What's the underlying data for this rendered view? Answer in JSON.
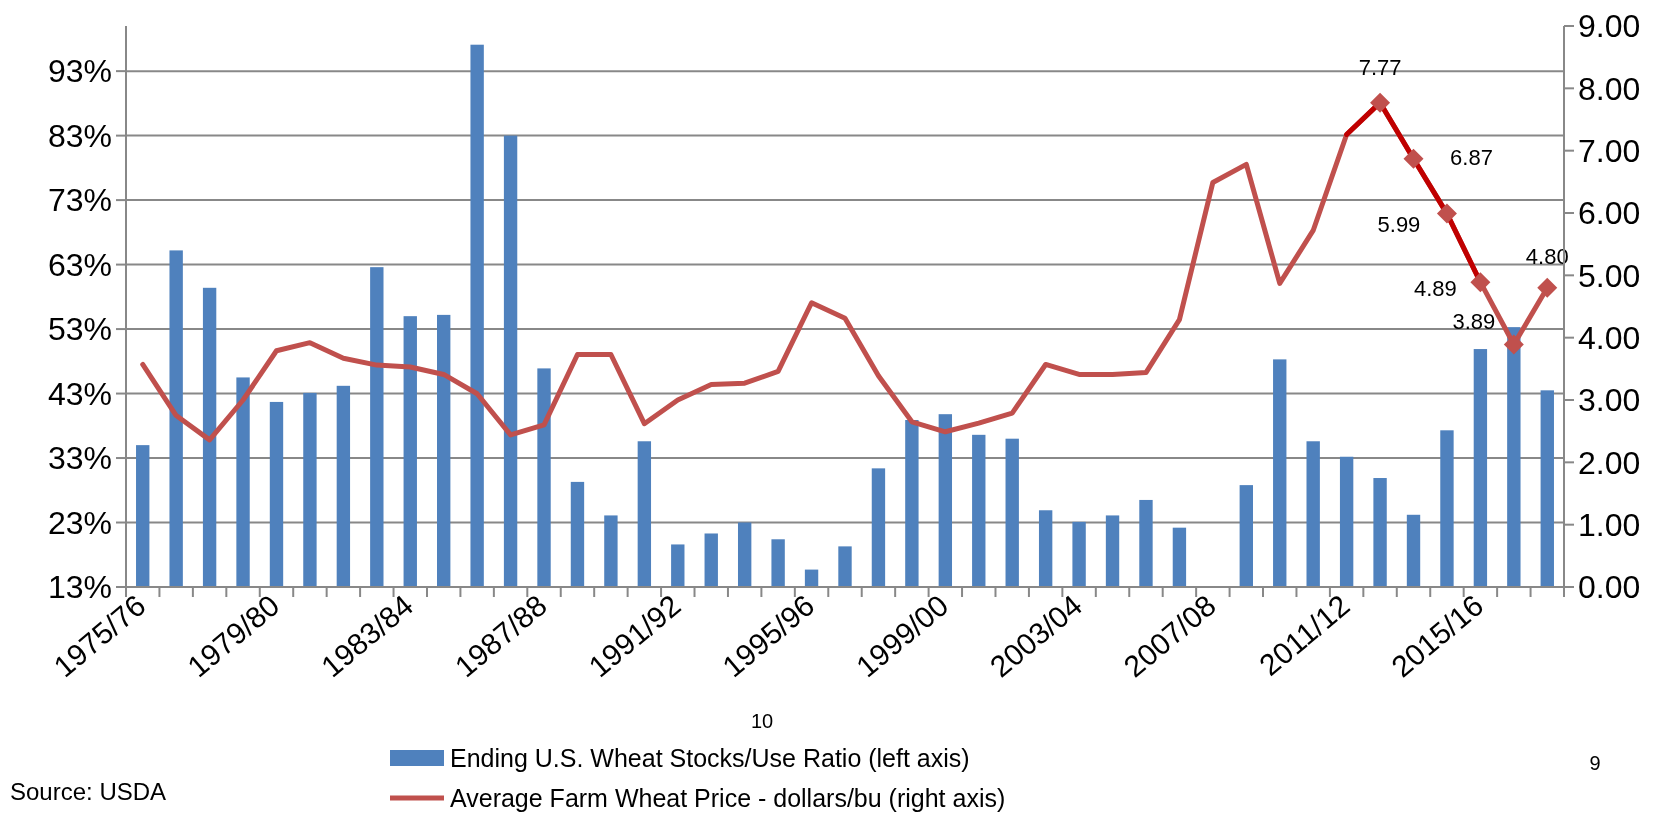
{
  "chart_data": {
    "type": "bar",
    "categories": [
      "1975/76",
      null,
      null,
      null,
      "1979/80",
      null,
      null,
      null,
      "1983/84",
      null,
      null,
      null,
      "1987/88",
      null,
      null,
      null,
      "1991/92",
      null,
      null,
      null,
      "1995/96",
      null,
      null,
      null,
      "1999/00",
      null,
      null,
      null,
      "2003/04",
      null,
      null,
      null,
      "2007/08",
      null,
      null,
      null,
      "2011/12",
      null,
      null,
      null,
      "2015/16",
      null,
      null
    ],
    "series": [
      {
        "name": "Ending U.S. Wheat Stocks/Use Ratio (left axis)",
        "color": "#4f81bd",
        "values": [
          35.0,
          65.2,
          59.4,
          45.5,
          41.7,
          43.1,
          44.2,
          62.6,
          55.0,
          55.2,
          97.1,
          83.0,
          46.9,
          29.3,
          24.1,
          35.6,
          19.6,
          21.3,
          23.0,
          20.4,
          15.7,
          19.3,
          31.4,
          38.9,
          39.8,
          36.6,
          36.0,
          24.9,
          23.1,
          24.1,
          26.5,
          22.2,
          13.1,
          28.8,
          48.3,
          35.6,
          33.2,
          29.9,
          24.2,
          37.3,
          49.9,
          53.3,
          43.5
        ]
      },
      {
        "name": "Average Farm Wheat Price - dollars/bu (right axis)",
        "type": "line",
        "axis": "y2",
        "color": "#c0504d",
        "values": [
          3.57,
          2.75,
          2.36,
          3.0,
          3.79,
          3.92,
          3.67,
          3.56,
          3.53,
          3.41,
          3.1,
          2.44,
          2.6,
          3.73,
          3.73,
          2.62,
          3.0,
          3.25,
          3.27,
          3.46,
          4.56,
          4.31,
          3.39,
          2.65,
          2.49,
          2.63,
          2.79,
          3.57,
          3.41,
          3.41,
          3.44,
          4.29,
          6.49,
          6.78,
          4.87,
          5.72,
          7.26,
          7.77,
          6.87,
          5.99,
          4.89,
          3.89,
          4.8
        ]
      },
      {
        "type": "line",
        "axis": "y2",
        "color": "#c00000",
        "values": [
          null,
          null,
          null,
          null,
          null,
          null,
          null,
          null,
          null,
          null,
          null,
          null,
          null,
          null,
          null,
          null,
          null,
          null,
          null,
          null,
          null,
          null,
          null,
          null,
          null,
          null,
          null,
          null,
          null,
          null,
          null,
          null,
          null,
          null,
          null,
          null,
          7.26,
          7.77,
          6.87,
          5.99,
          4.89,
          null,
          null
        ]
      },
      {
        "type": "scatter",
        "axis": "y2",
        "color": "#c0504d",
        "marker": "diamond",
        "values": [
          null,
          null,
          null,
          null,
          null,
          null,
          null,
          null,
          null,
          null,
          null,
          null,
          null,
          null,
          null,
          null,
          null,
          null,
          null,
          null,
          null,
          null,
          null,
          null,
          null,
          null,
          null,
          null,
          null,
          null,
          null,
          null,
          null,
          null,
          null,
          null,
          null,
          7.77,
          6.87,
          5.99,
          4.89,
          3.89,
          4.8
        ],
        "value_labels": [
          null,
          null,
          null,
          null,
          null,
          null,
          null,
          null,
          null,
          null,
          null,
          null,
          null,
          null,
          null,
          null,
          null,
          null,
          null,
          null,
          null,
          null,
          null,
          null,
          null,
          null,
          null,
          null,
          null,
          null,
          null,
          null,
          null,
          null,
          null,
          null,
          null,
          "7.77",
          "6.87",
          "5.99",
          "4.89",
          "3.89",
          "4.80"
        ]
      }
    ],
    "ylim": [
      13,
      100
    ],
    "yticks": [
      {
        "value": 13,
        "label": "13%"
      },
      {
        "value": 23,
        "label": "23%"
      },
      {
        "value": 33,
        "label": "33%"
      },
      {
        "value": 43,
        "label": "43%"
      },
      {
        "value": 53,
        "label": "53%"
      },
      {
        "value": 63,
        "label": "63%"
      },
      {
        "value": 73,
        "label": "73%"
      },
      {
        "value": 83,
        "label": "83%"
      },
      {
        "value": 93,
        "label": "93%"
      }
    ],
    "y2lim": [
      0,
      9
    ],
    "y2ticks": [
      {
        "value": 0,
        "label": "0.00"
      },
      {
        "value": 1,
        "label": "1.00"
      },
      {
        "value": 2,
        "label": "2.00"
      },
      {
        "value": 3,
        "label": "3.00"
      },
      {
        "value": 4,
        "label": "4.00"
      },
      {
        "value": 5,
        "label": "5.00"
      },
      {
        "value": 6,
        "label": "6.00"
      },
      {
        "value": 7,
        "label": "7.00"
      },
      {
        "value": 8,
        "label": "8.00"
      },
      {
        "value": 9,
        "label": "9.00"
      }
    ],
    "grid": "y",
    "legend": "bottom",
    "annotations": [
      "Source: USDA",
      "10",
      "9"
    ]
  }
}
